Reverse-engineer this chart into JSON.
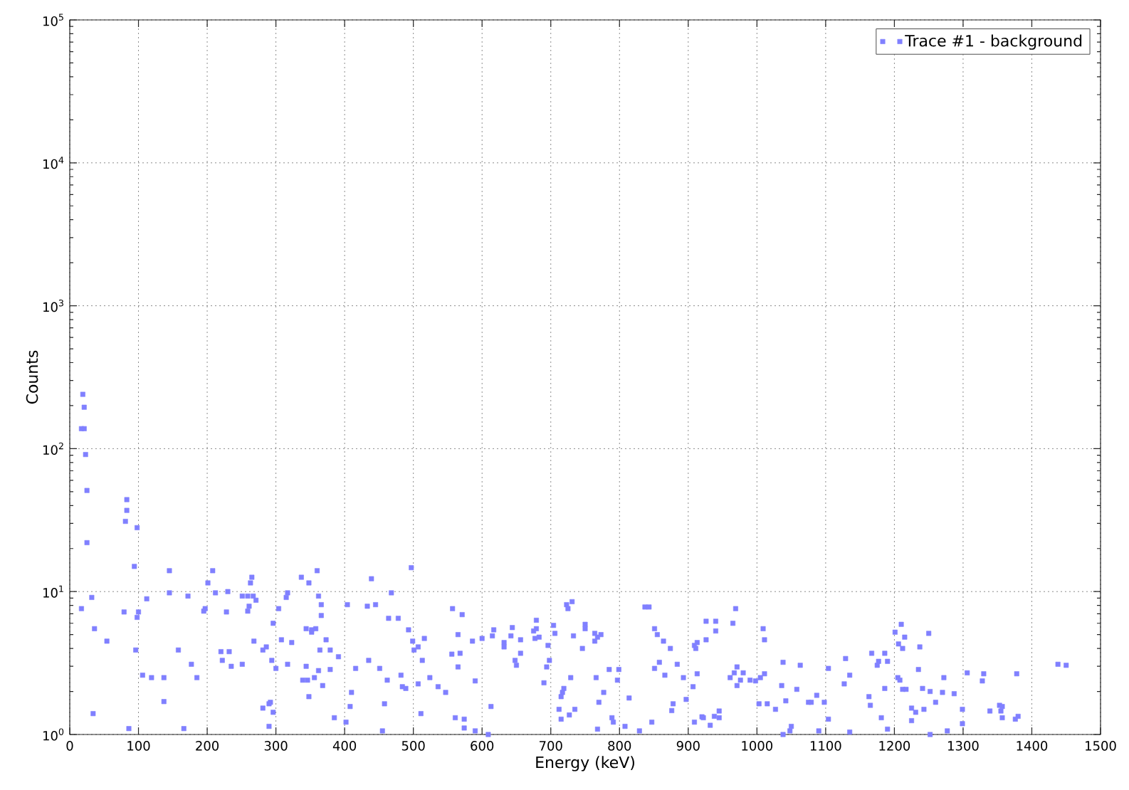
{
  "chart_data": {
    "type": "scatter",
    "xlabel": "Energy (keV)",
    "ylabel": "Counts",
    "series": [
      {
        "name": "Trace #1 - background",
        "color": "#8080ff",
        "x": [
          19,
          21,
          17,
          21,
          23,
          25,
          83,
          83,
          81,
          98,
          25,
          94,
          145,
          208,
          201,
          32,
          17,
          36,
          54,
          145,
          112,
          79,
          100,
          98,
          172,
          197,
          195,
          212,
          230,
          228,
          96,
          158,
          106,
          119,
          137,
          177,
          185,
          137,
          34,
          86,
          166,
          220,
          222,
          232,
          235,
          265,
          263,
          337,
          360,
          348,
          439,
          497,
          251,
          259,
          267,
          271,
          261,
          259,
          317,
          315,
          362,
          366,
          366,
          304,
          296,
          344,
          352,
          352,
          358,
          404,
          433,
          445,
          468,
          464,
          478,
          493,
          268,
          286,
          281,
          294,
          300,
          308,
          323,
          317,
          373,
          364,
          379,
          391,
          344,
          362,
          379,
          339,
          346,
          356,
          368,
          348,
          251,
          281,
          290,
          292,
          296,
          290,
          416,
          435,
          451,
          410,
          462,
          408,
          458,
          385,
          402,
          455,
          482,
          484,
          489,
          499,
          501,
          507,
          516,
          513,
          524,
          507,
          536,
          547,
          511,
          557,
          571,
          565,
          586,
          556,
          568,
          565,
          590,
          561,
          574,
          574,
          590,
          600,
          617,
          615,
          632,
          632,
          644,
          642,
          656,
          679,
          675,
          679,
          683,
          677,
          696,
          656,
          648,
          650,
          690,
          694,
          698,
          613,
          609,
          723,
          731,
          725,
          704,
          706,
          750,
          750,
          733,
          764,
          773,
          768,
          764,
          746,
          729,
          719,
          717,
          715,
          712,
          735,
          727,
          715,
          768,
          766,
          777,
          785,
          770,
          789,
          791,
          799,
          797,
          808,
          814,
          829,
          837,
          843,
          851,
          855,
          864,
          874,
          858,
          851,
          866,
          884,
          893,
          897,
          878,
          876,
          847,
          926,
          940,
          940,
          926,
          909,
          913,
          911,
          969,
          965,
          913,
          907,
          971,
          967,
          980,
          976,
          971,
          961,
          990,
          998,
          1005,
          1011,
          1009,
          1011,
          920,
          922,
          909,
          932,
          938,
          945,
          945,
          1003,
          1015,
          1027,
          1042,
          1036,
          1038,
          1063,
          1058,
          1075,
          1079,
          1087,
          1098,
          1050,
          1048,
          1038,
          1090,
          1104,
          1104,
          1129,
          1127,
          1135,
          1135,
          1167,
          1186,
          1177,
          1175,
          1190,
          1163,
          1165,
          1186,
          1181,
          1190,
          1201,
          1210,
          1215,
          1206,
          1212,
          1250,
          1237,
          1235,
          1205,
          1208,
          1212,
          1217,
          1241,
          1252,
          1272,
          1260,
          1270,
          1287,
          1225,
          1243,
          1231,
          1225,
          1252,
          1277,
          1299,
          1299,
          1306,
          1330,
          1328,
          1339,
          1353,
          1357,
          1355,
          1357,
          1378,
          1380,
          1376,
          1438,
          1450
        ],
        "values": [
          240,
          195,
          138,
          138,
          91,
          51,
          44,
          37,
          31,
          28,
          22,
          15,
          14,
          14,
          11.5,
          9.1,
          7.6,
          5.5,
          4.5,
          9.8,
          8.9,
          7.2,
          7.2,
          6.6,
          9.3,
          7.6,
          7.3,
          9.8,
          10,
          7.2,
          3.9,
          3.9,
          2.6,
          2.5,
          2.5,
          3.1,
          2.5,
          1.7,
          1.4,
          1.1,
          1.1,
          3.8,
          3.3,
          3.8,
          3.0,
          12.6,
          11.5,
          12.6,
          14,
          11.5,
          12.3,
          14.7,
          9.3,
          9.3,
          9.3,
          8.7,
          7.9,
          7.3,
          9.8,
          9.1,
          9.3,
          8.1,
          6.8,
          7.6,
          6.0,
          5.5,
          5.4,
          5.2,
          5.5,
          8.1,
          7.9,
          8.1,
          9.8,
          6.5,
          6.5,
          5.4,
          4.5,
          4.1,
          3.9,
          3.3,
          2.9,
          4.6,
          4.4,
          3.1,
          4.6,
          3.9,
          3.9,
          3.5,
          3.0,
          2.8,
          2.85,
          2.4,
          2.4,
          2.5,
          2.2,
          1.84,
          3.1,
          1.53,
          1.64,
          1.68,
          1.43,
          1.14,
          2.9,
          3.3,
          2.9,
          1.97,
          2.4,
          1.57,
          1.64,
          1.31,
          1.22,
          1.06,
          2.6,
          2.16,
          2.1,
          4.5,
          3.9,
          4.1,
          4.7,
          3.3,
          2.5,
          2.26,
          2.16,
          1.97,
          1.4,
          7.6,
          6.9,
          5.0,
          4.5,
          3.65,
          3.7,
          2.97,
          2.37,
          1.31,
          1.28,
          1.11,
          1.06,
          4.7,
          5.4,
          4.9,
          4.4,
          4.1,
          5.6,
          4.9,
          4.6,
          6.3,
          5.3,
          5.5,
          4.8,
          4.7,
          4.2,
          3.7,
          3.3,
          3.05,
          2.3,
          2.97,
          3.3,
          1.57,
          1.0,
          8.1,
          8.5,
          7.6,
          5.8,
          5.1,
          5.9,
          5.5,
          4.9,
          5.1,
          5.0,
          4.8,
          4.5,
          4.0,
          2.5,
          2.1,
          1.97,
          1.84,
          1.5,
          1.5,
          1.37,
          1.28,
          1.09,
          2.5,
          1.97,
          2.85,
          1.68,
          1.31,
          1.22,
          2.85,
          2.4,
          1.14,
          1.8,
          1.06,
          7.8,
          7.8,
          5.5,
          5.0,
          4.5,
          4.0,
          3.2,
          2.9,
          2.6,
          3.1,
          2.5,
          1.76,
          1.64,
          1.47,
          1.22,
          6.2,
          6.2,
          5.3,
          4.6,
          4.2,
          4.4,
          4.0,
          7.6,
          6.0,
          2.66,
          2.16,
          2.97,
          2.7,
          2.7,
          2.4,
          2.2,
          2.5,
          2.4,
          2.37,
          2.5,
          2.66,
          5.5,
          4.6,
          1.33,
          1.31,
          1.22,
          1.16,
          1.34,
          1.31,
          1.46,
          1.64,
          1.64,
          1.5,
          1.72,
          2.2,
          3.2,
          3.05,
          2.07,
          1.68,
          1.68,
          1.88,
          1.68,
          1.14,
          1.06,
          1.0,
          1.06,
          2.9,
          1.28,
          3.4,
          2.26,
          2.6,
          1.04,
          3.7,
          3.7,
          3.25,
          3.05,
          3.25,
          1.84,
          1.6,
          2.1,
          1.31,
          1.09,
          5.2,
          5.9,
          4.8,
          4.3,
          4.0,
          5.1,
          4.1,
          2.85,
          2.5,
          2.4,
          2.07,
          2.07,
          2.1,
          2.0,
          2.5,
          1.68,
          1.97,
          1.93,
          1.53,
          1.5,
          1.43,
          1.25,
          1.0,
          1.06,
          1.5,
          1.19,
          2.7,
          2.66,
          2.37,
          1.46,
          1.6,
          1.57,
          1.46,
          1.31,
          2.66,
          1.34,
          1.28,
          3.1,
          3.05
        ]
      }
    ],
    "xlim": [
      0,
      1500
    ],
    "xticks": [
      0,
      100,
      200,
      300,
      400,
      500,
      600,
      700,
      800,
      900,
      1000,
      1100,
      1200,
      1300,
      1400,
      1500
    ],
    "ylim": [
      1,
      100000
    ],
    "yticks": [
      {
        "value": 1,
        "label": "10$^{0}$"
      },
      {
        "value": 2,
        "label": null
      },
      {
        "value": 3,
        "label": null
      },
      {
        "value": 4,
        "label": null
      },
      {
        "value": 5,
        "label": null
      },
      {
        "value": 6,
        "label": null
      },
      {
        "value": 7,
        "label": null
      },
      {
        "value": 8,
        "label": null
      },
      {
        "value": 9,
        "label": null
      },
      {
        "value": 10,
        "label": "10$^{1}$"
      },
      {
        "value": 20,
        "label": null
      },
      {
        "value": 30,
        "label": null
      },
      {
        "value": 40,
        "label": null
      },
      {
        "value": 50,
        "label": null
      },
      {
        "value": 60,
        "label": null
      },
      {
        "value": 70,
        "label": null
      },
      {
        "value": 80,
        "label": null
      },
      {
        "value": 90,
        "label": null
      },
      {
        "value": 100,
        "label": "10$^{2}$"
      },
      {
        "value": 200,
        "label": null
      },
      {
        "value": 300,
        "label": null
      },
      {
        "value": 400,
        "label": null
      },
      {
        "value": 500,
        "label": null
      },
      {
        "value": 600,
        "label": null
      },
      {
        "value": 700,
        "label": null
      },
      {
        "value": 800,
        "label": null
      },
      {
        "value": 900,
        "label": null
      },
      {
        "value": 1000,
        "label": "10$^{3}$"
      },
      {
        "value": 2000,
        "label": null
      },
      {
        "value": 3000,
        "label": null
      },
      {
        "value": 4000,
        "label": null
      },
      {
        "value": 5000,
        "label": null
      },
      {
        "value": 6000,
        "label": null
      },
      {
        "value": 7000,
        "label": null
      },
      {
        "value": 8000,
        "label": null
      },
      {
        "value": 9000,
        "label": null
      },
      {
        "value": 10000,
        "label": "10$^{4}$"
      },
      {
        "value": 20000,
        "label": null
      },
      {
        "value": 30000,
        "label": null
      },
      {
        "value": 40000,
        "label": null
      },
      {
        "value": 50000,
        "label": null
      },
      {
        "value": 60000,
        "label": null
      },
      {
        "value": 70000,
        "label": null
      },
      {
        "value": 80000,
        "label": null
      },
      {
        "value": 90000,
        "label": null
      },
      {
        "value": 100000,
        "label": "10$^{5}$"
      }
    ],
    "log": "y",
    "grid": true,
    "legend": "top right",
    "marker": "square"
  }
}
